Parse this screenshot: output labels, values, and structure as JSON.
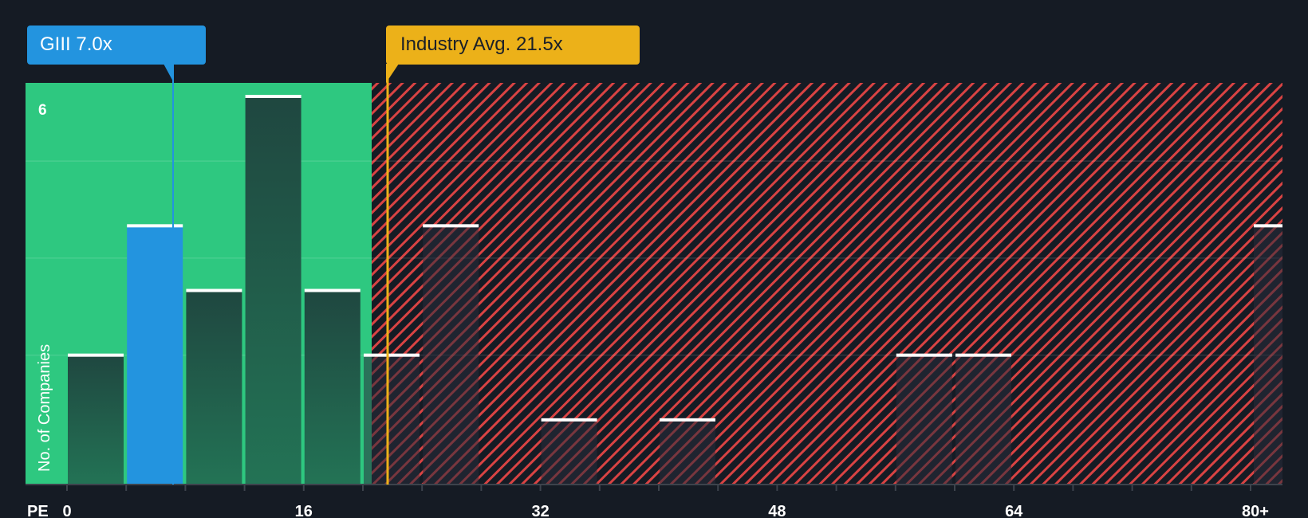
{
  "callouts": {
    "company": {
      "label": "GIII 7.0x",
      "value": 7.0,
      "color": "#2394df"
    },
    "industry": {
      "label": "Industry Avg. 21.5x",
      "value": 21.5,
      "color": "#ecb119"
    }
  },
  "axis": {
    "x_prefix": "PE",
    "y_label": "No. of Companies",
    "y_tick": "6",
    "x_ticks": [
      "0",
      "16",
      "32",
      "48",
      "64",
      "80+"
    ]
  },
  "colors": {
    "background": "#151b24",
    "good_zone": "#2ec880",
    "bad_hatch": "#d94343",
    "bar_dark": "#1f4a40",
    "bar_highlight": "#2394df",
    "bar_cap": "#ffffff"
  },
  "chart_data": {
    "type": "bar",
    "title": "",
    "xlabel": "PE",
    "ylabel": "No. of Companies",
    "categories": [
      "0-4",
      "4-8",
      "8-12",
      "12-16",
      "16-20",
      "20-24",
      "24-28",
      "28-32",
      "32-36",
      "36-40",
      "40-44",
      "44-48",
      "48-52",
      "52-56",
      "56-60",
      "60-64",
      "64-68",
      "68-72",
      "72-76",
      "76-80",
      "80+"
    ],
    "values": [
      2,
      4,
      3,
      6,
      3,
      2,
      4,
      0,
      1,
      0,
      1,
      0,
      0,
      0,
      2,
      2,
      0,
      0,
      0,
      0,
      4
    ],
    "highlight_category": "4-8",
    "ylim": [
      0,
      6.2
    ],
    "x_tick_labels": [
      "0",
      "16",
      "32",
      "48",
      "64",
      "80+"
    ],
    "annotations": [
      {
        "text": "GIII 7.0x",
        "x": 7.0
      },
      {
        "text": "Industry Avg. 21.5x",
        "x": 21.5
      }
    ],
    "undervalued_zone_max": 20.6
  }
}
